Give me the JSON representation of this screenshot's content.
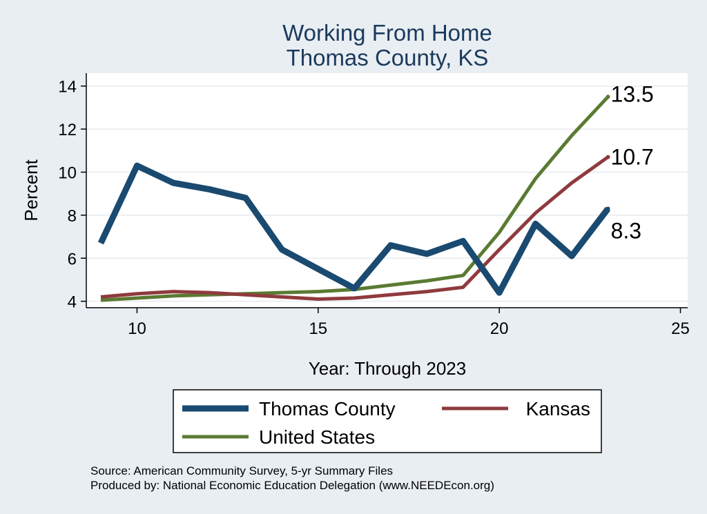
{
  "chart_data": {
    "type": "line",
    "title": [
      "Working From Home",
      "Thomas County, KS"
    ],
    "xlabel": "Year: Through 2023",
    "ylabel": "Percent",
    "xlim": [
      8.6,
      25.2
    ],
    "ylim": [
      3.7,
      14.6
    ],
    "xticks": [
      10,
      15,
      20,
      25
    ],
    "yticks": [
      4,
      6,
      8,
      10,
      12,
      14
    ],
    "grid": true,
    "legend_position": "bottom",
    "series": [
      {
        "name": "Thomas County",
        "color": "#1a4a70",
        "width": 9,
        "x": [
          9,
          10,
          11,
          12,
          13,
          14,
          15,
          16,
          17,
          18,
          19,
          20,
          21,
          22,
          23
        ],
        "y": [
          6.7,
          10.3,
          9.5,
          9.2,
          8.8,
          6.4,
          5.5,
          4.6,
          6.6,
          6.2,
          6.8,
          4.4,
          7.6,
          6.1,
          8.3
        ],
        "end_label": "8.3"
      },
      {
        "name": "Kansas",
        "color": "#8f3a3e",
        "width": 5,
        "x": [
          9,
          10,
          11,
          12,
          13,
          14,
          15,
          16,
          17,
          18,
          19,
          20,
          21,
          22,
          23
        ],
        "y": [
          4.2,
          4.35,
          4.45,
          4.4,
          4.3,
          4.2,
          4.1,
          4.15,
          4.3,
          4.45,
          4.65,
          6.4,
          8.1,
          9.5,
          10.7
        ],
        "end_label": "10.7"
      },
      {
        "name": "United States",
        "color": "#5a7a32",
        "width": 5,
        "x": [
          9,
          10,
          11,
          12,
          13,
          14,
          15,
          16,
          17,
          18,
          19,
          20,
          21,
          22,
          23
        ],
        "y": [
          4.05,
          4.15,
          4.25,
          4.3,
          4.35,
          4.4,
          4.45,
          4.55,
          4.75,
          4.95,
          5.2,
          7.2,
          9.7,
          11.7,
          13.5
        ],
        "end_label": "13.5"
      }
    ]
  },
  "footer": {
    "source": "Source: American Community Survey, 5-yr Summary Files",
    "produced_by": "Produced by: National Economic Education Delegation (www.NEEDEcon.org)"
  }
}
